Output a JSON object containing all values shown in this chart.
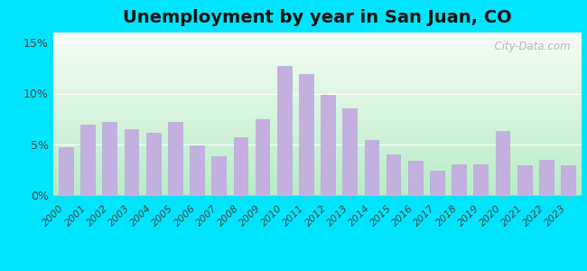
{
  "title": "Unemployment by year in San Juan, CO",
  "years": [
    2000,
    2001,
    2002,
    2003,
    2004,
    2005,
    2006,
    2007,
    2008,
    2009,
    2010,
    2011,
    2012,
    2013,
    2014,
    2015,
    2016,
    2017,
    2018,
    2019,
    2020,
    2021,
    2022,
    2023
  ],
  "values": [
    4.7,
    6.9,
    7.2,
    6.5,
    6.1,
    7.2,
    4.9,
    3.8,
    5.7,
    7.5,
    12.7,
    11.9,
    9.9,
    8.5,
    5.4,
    4.0,
    3.4,
    2.4,
    3.0,
    3.0,
    6.3,
    2.9,
    3.5,
    2.9
  ],
  "bar_color": "#c4b0e0",
  "bar_edge_color": "#b0a0d0",
  "yticks": [
    0,
    5,
    10,
    15
  ],
  "ytick_labels": [
    "0%",
    "5%",
    "10%",
    "15%"
  ],
  "ylim": [
    0,
    16
  ],
  "bg_outer": "#00e5ff",
  "bg_chart_color1": "#f0faf0",
  "bg_chart_color2": "#c8f0d8",
  "watermark_text": "  City-Data.com",
  "title_fontsize": 14,
  "tick_fontsize": 8
}
